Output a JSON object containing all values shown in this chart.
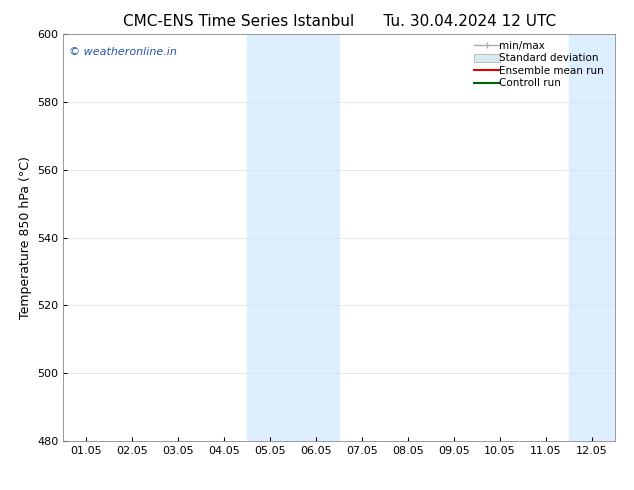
{
  "title_left": "CMC-ENS Time Series Istanbul",
  "title_right": "Tu. 30.04.2024 12 UTC",
  "ylabel": "Temperature 850 hPa (°C)",
  "ylim": [
    480,
    600
  ],
  "yticks": [
    480,
    500,
    520,
    540,
    560,
    580,
    600
  ],
  "xlabel_ticks": [
    "01.05",
    "02.05",
    "03.05",
    "04.05",
    "05.05",
    "06.05",
    "07.05",
    "08.05",
    "09.05",
    "10.05",
    "11.05",
    "12.05"
  ],
  "background_color": "#ffffff",
  "plot_bg_color": "#ffffff",
  "shaded_bands": [
    {
      "xmin": 3.5,
      "xmax": 4.5,
      "color": "#ddeeff"
    },
    {
      "xmin": 4.5,
      "xmax": 5.5,
      "color": "#ddeeff"
    },
    {
      "xmin": 10.5,
      "xmax": 11.5,
      "color": "#ddeeff"
    },
    {
      "xmin": 11.5,
      "xmax": 12.5,
      "color": "#ddeeff"
    }
  ],
  "watermark_text": "© weatheronline.in",
  "watermark_color": "#2255aa",
  "legend_items": [
    {
      "label": "min/max",
      "color": "#aaaaaa",
      "style": "errorbar"
    },
    {
      "label": "Standard deviation",
      "color": "#ccddee",
      "style": "band"
    },
    {
      "label": "Ensemble mean run",
      "color": "#ff0000",
      "style": "line"
    },
    {
      "label": "Controll run",
      "color": "#007700",
      "style": "line"
    }
  ],
  "title_fontsize": 11,
  "tick_fontsize": 8,
  "ylabel_fontsize": 9,
  "legend_fontsize": 7.5
}
